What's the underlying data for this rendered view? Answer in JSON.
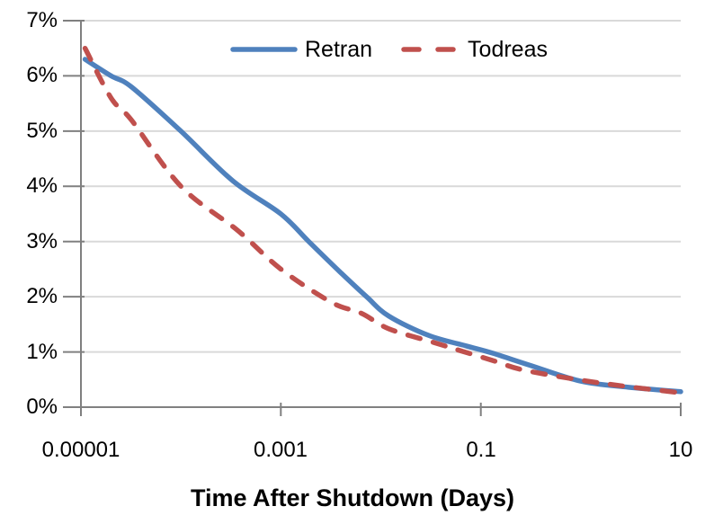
{
  "chart_data": {
    "type": "line",
    "title": "",
    "xlabel": "Time After Shutdown (Days)",
    "ylabel": "",
    "x_scale": "log",
    "xlim": [
      1e-05,
      10
    ],
    "ylim": [
      0,
      7
    ],
    "x_tick_values": [
      1e-05,
      0.001,
      0.1,
      10
    ],
    "x_tick_labels": [
      "0.00001",
      "0.001",
      "0.1",
      "10"
    ],
    "y_tick_values": [
      0,
      1,
      2,
      3,
      4,
      5,
      6,
      7
    ],
    "y_tick_labels": [
      "0%",
      "1%",
      "2%",
      "3%",
      "4%",
      "5%",
      "6%",
      "7%"
    ],
    "grid": "horizontal",
    "grid_color": "#D9D9D9",
    "axis_color": "#808080",
    "legend_position": "top-center",
    "series": [
      {
        "name": "Retran",
        "color": "#4F81BD",
        "line_style": "solid",
        "points": [
          [
            1.1e-05,
            6.3
          ],
          [
            2e-05,
            6.0
          ],
          [
            3.2e-05,
            5.8
          ],
          [
            0.0001,
            5.0
          ],
          [
            0.00033,
            4.1
          ],
          [
            0.001,
            3.5
          ],
          [
            0.0019,
            3.0
          ],
          [
            0.0039,
            2.45
          ],
          [
            0.0072,
            2.0
          ],
          [
            0.012,
            1.65
          ],
          [
            0.03,
            1.3
          ],
          [
            0.071,
            1.11
          ],
          [
            0.13,
            0.98
          ],
          [
            0.32,
            0.75
          ],
          [
            1.0,
            0.47
          ],
          [
            3.0,
            0.36
          ],
          [
            10.0,
            0.28
          ]
        ]
      },
      {
        "name": "Todreas",
        "color": "#C0504D",
        "line_style": "dashed",
        "points": [
          [
            1.1e-05,
            6.5
          ],
          [
            2e-05,
            5.6
          ],
          [
            3.2e-05,
            5.2
          ],
          [
            0.0001,
            4.0
          ],
          [
            0.00037,
            3.2
          ],
          [
            0.001,
            2.5
          ],
          [
            0.0032,
            1.9
          ],
          [
            0.0064,
            1.7
          ],
          [
            0.012,
            1.42
          ],
          [
            0.034,
            1.17
          ],
          [
            0.066,
            1.01
          ],
          [
            0.14,
            0.83
          ],
          [
            0.27,
            0.67
          ],
          [
            1.0,
            0.49
          ],
          [
            3.0,
            0.37
          ],
          [
            10.0,
            0.26
          ]
        ]
      }
    ]
  }
}
